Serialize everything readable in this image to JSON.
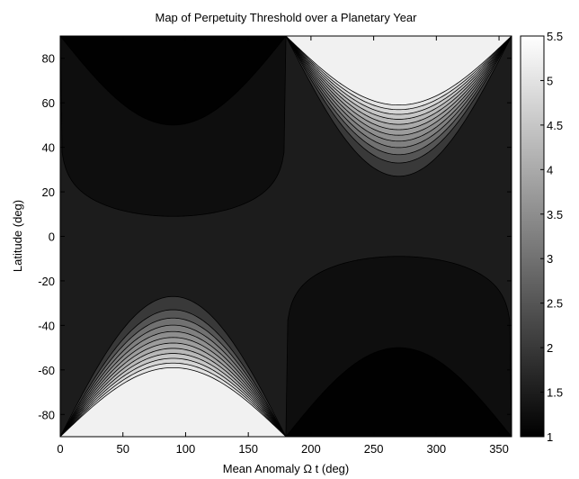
{
  "chart_data": {
    "type": "heatmap",
    "subtype": "filled-contour",
    "title": "Map of Perpetuity Threshold over a Planetary Year",
    "xlabel": "Mean Anomaly Ω t (deg)",
    "ylabel": "Latitude (deg)",
    "xlim": [
      0,
      360
    ],
    "ylim": [
      -90,
      90
    ],
    "xticks": [
      0,
      50,
      100,
      150,
      200,
      250,
      300,
      350
    ],
    "yticks": [
      -80,
      -60,
      -40,
      -20,
      0,
      20,
      40,
      60,
      80
    ],
    "colormap": "gray",
    "clim": [
      1,
      5.5
    ],
    "colorbar_ticks": [
      1,
      1.5,
      2,
      2.5,
      3,
      3.5,
      4,
      4.5,
      5,
      5.5
    ],
    "colorbar_tick_labels": [
      "1",
      "1.5",
      "2",
      "2.5",
      "3",
      "3.5",
      "4",
      "4.5",
      "5",
      "5.5"
    ],
    "background_level": 1.5,
    "lower_levels": [
      1.25
    ],
    "upper_levels": [
      2,
      2.5,
      3,
      3.25,
      3.5,
      3.75,
      4,
      4.25,
      4.5,
      4.75,
      5,
      5.25
    ],
    "regions": [
      {
        "name": "northern-dark-lobe",
        "x_range": [
          0,
          180
        ],
        "hemisphere": "north",
        "min_boundary_lat": 50,
        "outer_boundary_lat": 9,
        "min_value": 1
      },
      {
        "name": "southern-bright-lobe",
        "x_range": [
          0,
          180
        ],
        "hemisphere": "south",
        "extreme_lat": -59,
        "outer_boundary_lat": -27,
        "max_value": 5.5
      },
      {
        "name": "northern-bright-lobe",
        "x_range": [
          180,
          360
        ],
        "hemisphere": "north",
        "extreme_lat": 59,
        "outer_boundary_lat": 27,
        "max_value": 5.5
      },
      {
        "name": "southern-dark-lobe",
        "x_range": [
          180,
          360
        ],
        "hemisphere": "south",
        "min_boundary_lat": -50,
        "outer_boundary_lat": -9,
        "min_value": 1
      }
    ]
  }
}
